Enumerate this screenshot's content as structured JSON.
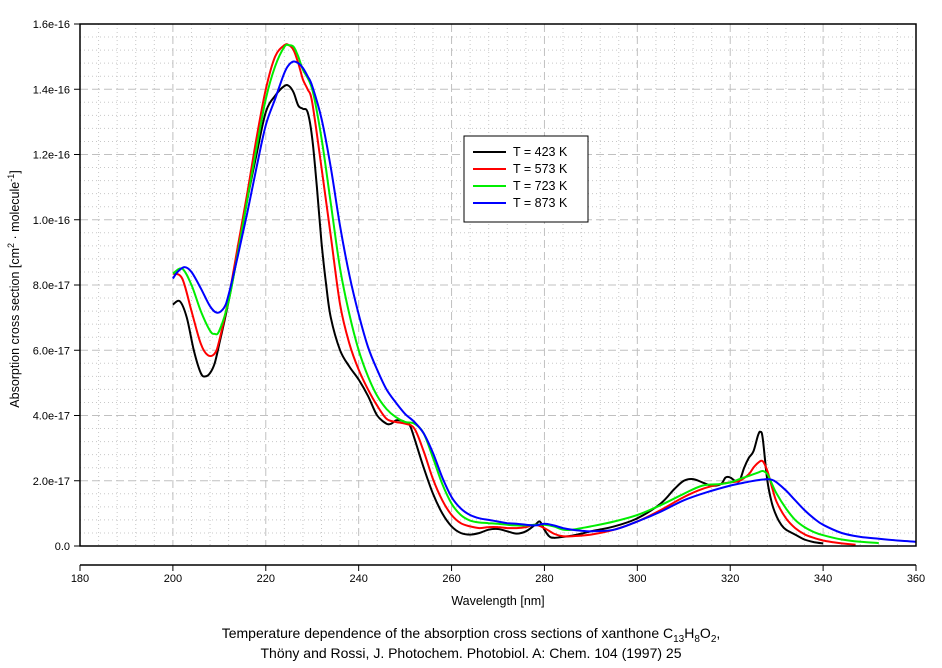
{
  "chart_data": {
    "type": "line",
    "title": "",
    "xlabel": "Wavelength [nm]",
    "ylabel": "Absorption cross section [cm^2 · molecule^-1]",
    "ylabel_parts": {
      "main": "Absorption cross section [cm",
      "sup1": "2",
      "mid": " · molecule",
      "sup2": "-1",
      "end": "]"
    },
    "xlim": [
      180,
      360
    ],
    "ylim": [
      0,
      1.6e-16
    ],
    "x_ticks": [
      180,
      200,
      220,
      240,
      260,
      280,
      300,
      320,
      340,
      360
    ],
    "x_tick_labels": [
      "180",
      "200",
      "220",
      "240",
      "260",
      "280",
      "300",
      "320",
      "340",
      "360"
    ],
    "y_ticks": [
      0,
      2e-17,
      4e-17,
      6e-17,
      8e-17,
      1e-16,
      1.2e-16,
      1.4e-16,
      1.6e-16
    ],
    "y_tick_labels": [
      "0.0",
      "2.0e-17",
      "4.0e-17",
      "6.0e-17",
      "8.0e-17",
      "1.0e-16",
      "1.2e-16",
      "1.4e-16",
      "1.6e-16"
    ],
    "grid": true,
    "legend_position": "upper-center",
    "series": [
      {
        "name": "T = 423 K",
        "color": "#000000",
        "x": [
          200,
          201.5,
          203,
          204.5,
          206,
          207,
          208,
          209,
          210,
          212,
          214,
          216,
          218,
          220,
          222,
          224,
          225,
          226,
          227,
          228,
          229,
          230,
          231,
          232,
          233,
          234,
          236,
          238,
          240,
          242,
          244,
          246,
          247,
          248,
          249,
          250,
          251,
          252,
          254,
          256,
          258,
          260,
          262,
          264,
          266,
          268,
          270,
          272,
          274,
          276,
          278,
          279,
          280,
          281,
          282,
          284,
          286,
          288,
          290,
          295,
          300,
          305,
          308,
          310,
          312,
          314,
          316,
          318,
          319,
          320,
          321,
          322,
          323,
          324,
          325,
          326,
          326.5,
          327,
          328,
          329,
          330,
          331,
          332,
          334,
          336,
          338,
          340
        ],
        "y": [
          7.4e-17,
          7.5e-17,
          7e-17,
          6e-17,
          5.3e-17,
          5.2e-17,
          5.3e-17,
          5.6e-17,
          6.2e-17,
          7.5e-17,
          9e-17,
          1.06e-16,
          1.2e-16,
          1.33e-16,
          1.38e-16,
          1.41e-16,
          1.41e-16,
          1.39e-16,
          1.35e-16,
          1.34e-16,
          1.33e-16,
          1.25e-16,
          1.1e-16,
          9.3e-17,
          8e-17,
          7e-17,
          6e-17,
          5.5e-17,
          5.1e-17,
          4.6e-17,
          4e-17,
          3.75e-17,
          3.75e-17,
          3.85e-17,
          3.85e-17,
          3.8e-17,
          3.7e-17,
          3.3e-17,
          2.4e-17,
          1.6e-17,
          1e-17,
          6e-18,
          4e-18,
          3.5e-18,
          4e-18,
          5e-18,
          5.2e-18,
          4.5e-18,
          3.8e-18,
          4.5e-18,
          6.5e-18,
          7.5e-18,
          5e-18,
          3e-18,
          2.5e-18,
          2.8e-18,
          3.2e-18,
          3.8e-18,
          4.5e-18,
          6e-18,
          8.5e-18,
          1.3e-17,
          1.75e-17,
          2e-17,
          2.05e-17,
          1.95e-17,
          1.85e-17,
          1.9e-17,
          2.1e-17,
          2.1e-17,
          2e-17,
          2e-17,
          2.4e-17,
          2.7e-17,
          2.9e-17,
          3.4e-17,
          3.5e-17,
          3.3e-17,
          2e-17,
          1.3e-17,
          9e-18,
          6.5e-18,
          5e-18,
          3.5e-18,
          2e-18,
          1.2e-18,
          8e-19
        ]
      },
      {
        "name": "T = 573 K",
        "color": "#ff0000",
        "x": [
          200,
          202,
          204,
          206,
          207.5,
          209,
          210,
          212,
          214,
          216,
          218,
          220,
          222,
          224,
          225,
          226,
          227,
          228,
          229,
          230,
          232,
          234,
          236,
          238,
          240,
          242,
          244,
          246,
          248,
          250,
          252,
          254,
          256,
          258,
          260,
          262,
          264,
          266,
          268,
          270,
          272,
          274,
          276,
          278,
          280,
          282,
          284,
          286,
          290,
          295,
          300,
          305,
          310,
          314,
          318,
          320,
          322,
          324,
          325,
          326,
          327,
          328,
          329,
          330,
          332,
          334,
          336,
          338,
          340,
          342,
          344,
          347
        ],
        "y": [
          8.35e-17,
          8.2e-17,
          7.2e-17,
          6.2e-17,
          5.85e-17,
          5.9e-17,
          6.3e-17,
          7.6e-17,
          9.2e-17,
          1.08e-16,
          1.25e-16,
          1.4e-16,
          1.5e-16,
          1.535e-16,
          1.535e-16,
          1.52e-16,
          1.48e-16,
          1.43e-16,
          1.4e-16,
          1.36e-16,
          1.16e-16,
          9.5e-17,
          7.4e-17,
          6.2e-17,
          5.4e-17,
          4.8e-17,
          4.3e-17,
          3.9e-17,
          3.8e-17,
          3.75e-17,
          3.6e-17,
          2.9e-17,
          2.05e-17,
          1.4e-17,
          9.5e-18,
          7e-18,
          6e-18,
          5.5e-18,
          5.8e-18,
          5.8e-18,
          5.5e-18,
          5.5e-18,
          5.8e-18,
          6.5e-18,
          5.5e-18,
          3.8e-18,
          3e-18,
          3e-18,
          3.5e-18,
          5e-18,
          7.5e-18,
          1.1e-17,
          1.5e-17,
          1.75e-17,
          1.9e-17,
          1.95e-17,
          2e-17,
          2.2e-17,
          2.4e-17,
          2.55e-17,
          2.6e-17,
          2.3e-17,
          1.8e-17,
          1.35e-17,
          8.5e-18,
          5.5e-18,
          3.6e-18,
          2.5e-18,
          1.7e-18,
          1.2e-18,
          8e-19,
          4e-19
        ]
      },
      {
        "name": "T = 723 K",
        "color": "#00ee00",
        "x": [
          200,
          202,
          204,
          206,
          208,
          209,
          210,
          212,
          214,
          216,
          218,
          220,
          222,
          224,
          225,
          226,
          227,
          228,
          230,
          232,
          234,
          236,
          238,
          240,
          242,
          244,
          246,
          248,
          250,
          252,
          254,
          256,
          258,
          260,
          262,
          264,
          266,
          268,
          270,
          272,
          274,
          276,
          278,
          280,
          282,
          284,
          286,
          288,
          290,
          295,
          300,
          305,
          310,
          314,
          318,
          320,
          322,
          324,
          326,
          327,
          328,
          329,
          330,
          332,
          334,
          336,
          338,
          340,
          344,
          348,
          352
        ],
        "y": [
          8.35e-17,
          8.5e-17,
          8e-17,
          7.2e-17,
          6.6e-17,
          6.5e-17,
          6.6e-17,
          7.5e-17,
          9e-17,
          1.06e-16,
          1.22e-16,
          1.37e-16,
          1.47e-16,
          1.53e-16,
          1.535e-16,
          1.53e-16,
          1.5e-16,
          1.46e-16,
          1.4e-16,
          1.25e-16,
          1.05e-16,
          8.5e-17,
          7.1e-17,
          6e-17,
          5.2e-17,
          4.6e-17,
          4.2e-17,
          3.95e-17,
          3.8e-17,
          3.75e-17,
          3.45e-17,
          2.7e-17,
          1.9e-17,
          1.3e-17,
          9.5e-18,
          7.8e-18,
          7.2e-18,
          7e-18,
          6.8e-18,
          6.5e-18,
          6.3e-18,
          6.3e-18,
          6.5e-18,
          6.5e-18,
          6e-18,
          5e-18,
          5e-18,
          5.5e-18,
          6e-18,
          7.5e-18,
          9.5e-18,
          1.25e-17,
          1.6e-17,
          1.85e-17,
          1.9e-17,
          1.95e-17,
          2.05e-17,
          2.15e-17,
          2.25e-17,
          2.3e-17,
          2.2e-17,
          1.9e-17,
          1.6e-17,
          1.15e-17,
          8e-18,
          5.8e-18,
          4.3e-18,
          3.3e-18,
          2e-18,
          1.3e-18,
          9e-19
        ]
      },
      {
        "name": "T = 873 K",
        "color": "#0000ff",
        "x": [
          200,
          201,
          202.5,
          204,
          206,
          208,
          209.5,
          211,
          212,
          214,
          216,
          218,
          220,
          222,
          224,
          225,
          226,
          227,
          228,
          229,
          230,
          232,
          234,
          236,
          238,
          240,
          242,
          244,
          246,
          248,
          250,
          252,
          254,
          256,
          258,
          260,
          262,
          264,
          266,
          268,
          270,
          272,
          274,
          276,
          278,
          280,
          282,
          284,
          286,
          288,
          290,
          295,
          300,
          305,
          310,
          315,
          320,
          324,
          326,
          328,
          329,
          330,
          332,
          334,
          336,
          338,
          340,
          344,
          348,
          352,
          356,
          360
        ],
        "y": [
          8.2e-17,
          8.4e-17,
          8.55e-17,
          8.4e-17,
          7.9e-17,
          7.35e-17,
          7.15e-17,
          7.3e-17,
          7.7e-17,
          8.9e-17,
          1.02e-16,
          1.16e-16,
          1.29e-16,
          1.37e-16,
          1.45e-16,
          1.475e-16,
          1.485e-16,
          1.48e-16,
          1.465e-16,
          1.44e-16,
          1.41e-16,
          1.31e-16,
          1.16e-16,
          9.8e-17,
          8.3e-17,
          7.1e-17,
          6.1e-17,
          5.4e-17,
          4.8e-17,
          4.4e-17,
          4.05e-17,
          3.8e-17,
          3.45e-17,
          2.85e-17,
          2.1e-17,
          1.5e-17,
          1.15e-17,
          9.5e-18,
          8.5e-18,
          8e-18,
          7.5e-18,
          7e-18,
          6.8e-18,
          6.5e-18,
          6.3e-18,
          6.8e-18,
          6.3e-18,
          5.5e-18,
          5e-18,
          4.7e-18,
          4.5e-18,
          5e-18,
          7.5e-18,
          1.05e-17,
          1.4e-17,
          1.65e-17,
          1.85e-17,
          1.97e-17,
          2.02e-17,
          2.05e-17,
          2.03e-17,
          1.95e-17,
          1.7e-17,
          1.4e-17,
          1.1e-17,
          8.5e-18,
          6.5e-18,
          4e-18,
          2.8e-18,
          2.2e-18,
          1.7e-18,
          1.3e-18
        ]
      }
    ]
  },
  "caption": {
    "line1_prefix": "Temperature dependence of the absorption cross sections of xanthone C",
    "line1_sub1": "13",
    "line1_h": "H",
    "line1_sub2": "8",
    "line1_o": "O",
    "line1_sub3": "2",
    "line1_suffix": ",",
    "line2": "Thöny and Rossi, J. Photochem. Photobiol. A: Chem. 104 (1997) 25"
  }
}
